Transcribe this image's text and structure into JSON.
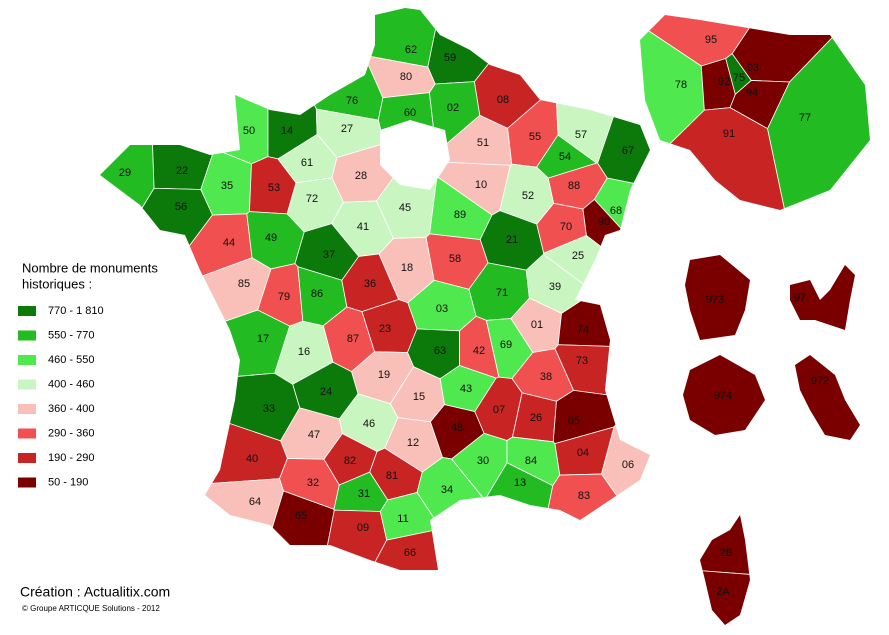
{
  "legend": {
    "title": [
      "Nombre de monuments",
      "historiques :"
    ],
    "classes": [
      {
        "label": "770 - 1 810",
        "color": "#0b7a0b"
      },
      {
        "label": "550 - 770",
        "color": "#22bb22"
      },
      {
        "label": "460 - 550",
        "color": "#4fe84f"
      },
      {
        "label": "400 - 460",
        "color": "#c8f5c0"
      },
      {
        "label": "360 - 400",
        "color": "#f8c0b8"
      },
      {
        "label": "290 - 360",
        "color": "#f05050"
      },
      {
        "label": "190 - 290",
        "color": "#c82424"
      },
      {
        "label": "50 - 190",
        "color": "#7a0000"
      }
    ]
  },
  "departments": [
    {
      "code": "62",
      "color": "#22bb22"
    },
    {
      "code": "59",
      "color": "#0b7a0b"
    },
    {
      "code": "80",
      "color": "#f8c0b8"
    },
    {
      "code": "76",
      "color": "#22bb22"
    },
    {
      "code": "60",
      "color": "#22bb22"
    },
    {
      "code": "02",
      "color": "#22bb22"
    },
    {
      "code": "08",
      "color": "#c82424"
    },
    {
      "code": "50",
      "color": "#4fe84f"
    },
    {
      "code": "14",
      "color": "#0b7a0b"
    },
    {
      "code": "27",
      "color": "#c8f5c0"
    },
    {
      "code": "51",
      "color": "#f8c0b8"
    },
    {
      "code": "55",
      "color": "#f05050"
    },
    {
      "code": "57",
      "color": "#c8f5c0"
    },
    {
      "code": "67",
      "color": "#0b7a0b"
    },
    {
      "code": "54",
      "color": "#22bb22"
    },
    {
      "code": "29",
      "color": "#22bb22"
    },
    {
      "code": "22",
      "color": "#0b7a0b"
    },
    {
      "code": "35",
      "color": "#4fe84f"
    },
    {
      "code": "53",
      "color": "#c82424"
    },
    {
      "code": "61",
      "color": "#c8f5c0"
    },
    {
      "code": "28",
      "color": "#f8c0b8"
    },
    {
      "code": "72",
      "color": "#c8f5c0"
    },
    {
      "code": "10",
      "color": "#f8c0b8"
    },
    {
      "code": "52",
      "color": "#c8f5c0"
    },
    {
      "code": "88",
      "color": "#f05050"
    },
    {
      "code": "68",
      "color": "#4fe84f"
    },
    {
      "code": "56",
      "color": "#0b7a0b"
    },
    {
      "code": "44",
      "color": "#f05050"
    },
    {
      "code": "49",
      "color": "#22bb22"
    },
    {
      "code": "41",
      "color": "#c8f5c0"
    },
    {
      "code": "45",
      "color": "#c8f5c0"
    },
    {
      "code": "89",
      "color": "#4fe84f"
    },
    {
      "code": "21",
      "color": "#0b7a0b"
    },
    {
      "code": "70",
      "color": "#f05050"
    },
    {
      "code": "90",
      "color": "#7a0000"
    },
    {
      "code": "37",
      "color": "#0b7a0b"
    },
    {
      "code": "18",
      "color": "#f8c0b8"
    },
    {
      "code": "58",
      "color": "#f05050"
    },
    {
      "code": "25",
      "color": "#c8f5c0"
    },
    {
      "code": "85",
      "color": "#f8c0b8"
    },
    {
      "code": "79",
      "color": "#f05050"
    },
    {
      "code": "86",
      "color": "#22bb22"
    },
    {
      "code": "36",
      "color": "#c82424"
    },
    {
      "code": "71",
      "color": "#22bb22"
    },
    {
      "code": "39",
      "color": "#c8f5c0"
    },
    {
      "code": "03",
      "color": "#4fe84f"
    },
    {
      "code": "01",
      "color": "#f8c0b8"
    },
    {
      "code": "74",
      "color": "#7a0000"
    },
    {
      "code": "17",
      "color": "#22bb22"
    },
    {
      "code": "87",
      "color": "#f05050"
    },
    {
      "code": "23",
      "color": "#c82424"
    },
    {
      "code": "63",
      "color": "#0b7a0b"
    },
    {
      "code": "42",
      "color": "#f05050"
    },
    {
      "code": "69",
      "color": "#4fe84f"
    },
    {
      "code": "73",
      "color": "#c82424"
    },
    {
      "code": "16",
      "color": "#c8f5c0"
    },
    {
      "code": "19",
      "color": "#f8c0b8"
    },
    {
      "code": "38",
      "color": "#f05050"
    },
    {
      "code": "43",
      "color": "#4fe84f"
    },
    {
      "code": "24",
      "color": "#0b7a0b"
    },
    {
      "code": "15",
      "color": "#f8c0b8"
    },
    {
      "code": "33",
      "color": "#0b7a0b"
    },
    {
      "code": "46",
      "color": "#c8f5c0"
    },
    {
      "code": "47",
      "color": "#f8c0b8"
    },
    {
      "code": "48",
      "color": "#7a0000"
    },
    {
      "code": "07",
      "color": "#c82424"
    },
    {
      "code": "26",
      "color": "#c82424"
    },
    {
      "code": "05",
      "color": "#7a0000"
    },
    {
      "code": "12",
      "color": "#f8c0b8"
    },
    {
      "code": "40",
      "color": "#c82424"
    },
    {
      "code": "82",
      "color": "#c82424"
    },
    {
      "code": "30",
      "color": "#4fe84f"
    },
    {
      "code": "84",
      "color": "#4fe84f"
    },
    {
      "code": "04",
      "color": "#c82424"
    },
    {
      "code": "06",
      "color": "#f8c0b8"
    },
    {
      "code": "81",
      "color": "#c82424"
    },
    {
      "code": "32",
      "color": "#f05050"
    },
    {
      "code": "31",
      "color": "#22bb22"
    },
    {
      "code": "34",
      "color": "#4fe84f"
    },
    {
      "code": "13",
      "color": "#22bb22"
    },
    {
      "code": "83",
      "color": "#f05050"
    },
    {
      "code": "64",
      "color": "#f8c0b8"
    },
    {
      "code": "65",
      "color": "#7a0000"
    },
    {
      "code": "09",
      "color": "#c82424"
    },
    {
      "code": "11",
      "color": "#4fe84f"
    },
    {
      "code": "66",
      "color": "#c82424"
    },
    {
      "code": "95",
      "color": "#f05050"
    },
    {
      "code": "78",
      "color": "#4fe84f"
    },
    {
      "code": "92",
      "color": "#7a0000"
    },
    {
      "code": "75",
      "color": "#0b7a0b"
    },
    {
      "code": "93",
      "color": "#7a0000"
    },
    {
      "code": "94",
      "color": "#7a0000"
    },
    {
      "code": "91",
      "color": "#c82424"
    },
    {
      "code": "77",
      "color": "#22bb22"
    },
    {
      "code": "973",
      "color": "#7a0000"
    },
    {
      "code": "97",
      "color": "#7a0000"
    },
    {
      "code": "974",
      "color": "#7a0000"
    },
    {
      "code": "972",
      "color": "#7a0000"
    },
    {
      "code": "2B",
      "color": "#7a0000"
    },
    {
      "code": "2A",
      "color": "#7a0000"
    }
  ],
  "credit": "Création : Actualitix.com",
  "copyright": "© Groupe ARTICQUE Solutions - 2012"
}
